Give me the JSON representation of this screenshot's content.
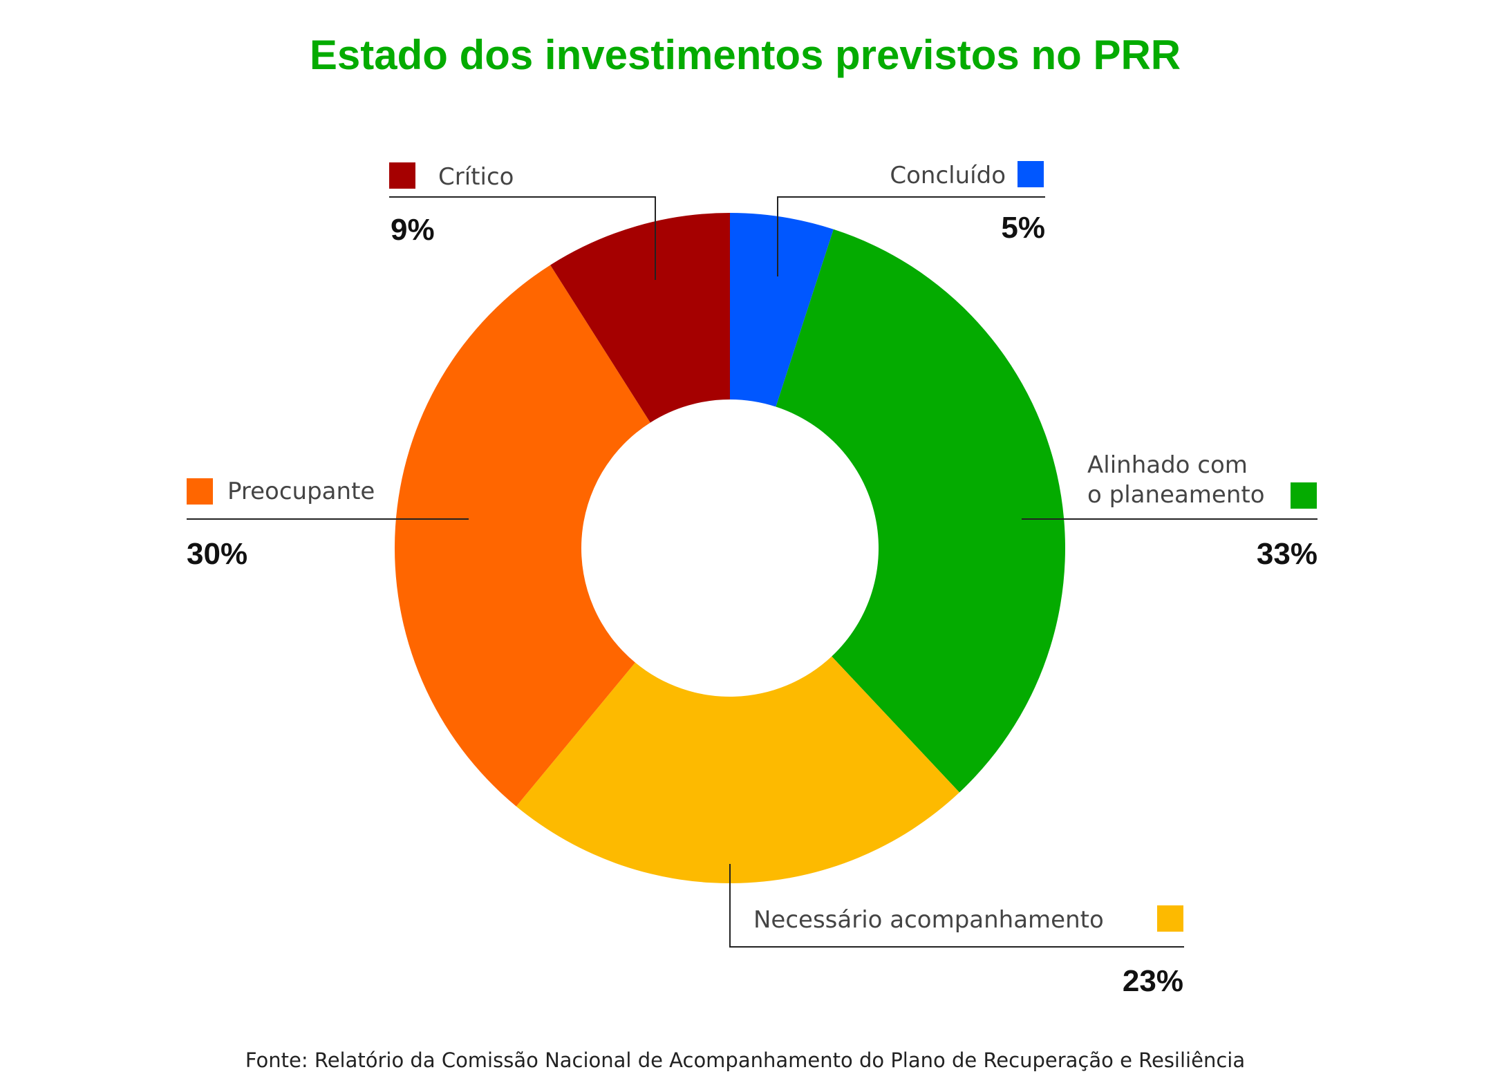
{
  "chart_data": {
    "type": "pie",
    "title": "Estado dos investimentos previstos no PRR",
    "donut": true,
    "slices": [
      {
        "label": "Concluído",
        "value": 5,
        "value_label": "5%",
        "color": "#0057ff"
      },
      {
        "label_lines": [
          "Alinhado com",
          "o planeamento"
        ],
        "value": 33,
        "value_label": "33%",
        "color": "#04ab00"
      },
      {
        "label": "Necessário acompanhamento",
        "value": 23,
        "value_label": "23%",
        "color": "#fdba00"
      },
      {
        "label": "Preocupante",
        "value": 30,
        "value_label": "30%",
        "color": "#ff6600"
      },
      {
        "label": "Crítico",
        "value": 9,
        "value_label": "9%",
        "color": "#a50000"
      }
    ],
    "source": "Fonte: Relatório da Comissão Nacional de Acompanhamento do Plano de Recuperação e Resiliência",
    "title_color": "#04ab00"
  }
}
